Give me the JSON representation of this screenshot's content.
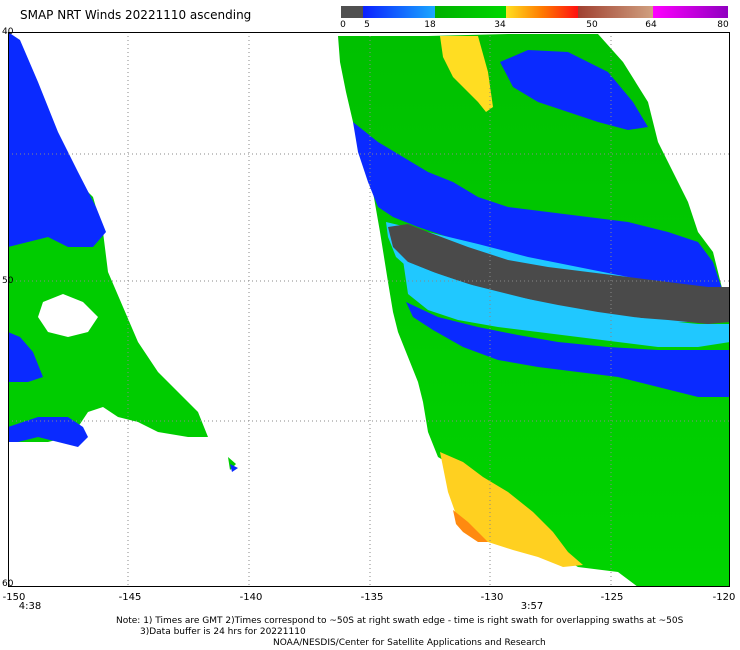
{
  "title": "SMAP NRT Winds 20221110 ascending",
  "colorbar": {
    "labels": [
      "0",
      "5",
      "18",
      "34",
      "50",
      "64",
      "80"
    ],
    "colors": [
      "#505050",
      "#0a50ff",
      "#1ab4ff",
      "#00c800",
      "#ffd21a",
      "#ff6a00",
      "#a05030",
      "#c000c0"
    ]
  },
  "axis": {
    "x_ticks": [
      "-150",
      "-145",
      "-140",
      "-135",
      "-130",
      "-125",
      "-120"
    ],
    "y_ticks": [
      "40",
      "50",
      "60"
    ],
    "time_labels": [
      "4:38",
      "3:57"
    ]
  },
  "notes": {
    "line1": "Note: 1) Times are GMT 2)Times correspond to ~50S at right swath edge - time is right swath for overlapping swaths at ~50S",
    "line2": "3)Data buffer is 24 hrs for 20221110",
    "line3": "NOAA/NESDIS/Center for Satellite Applications and Research"
  },
  "legend_colors": {
    "dark_gray": "#4a4a4a",
    "blue": "#0033ff",
    "light_blue": "#00c8ff",
    "green": "#00cc00",
    "yellow": "#ffdd22",
    "orange": "#ff8800"
  }
}
